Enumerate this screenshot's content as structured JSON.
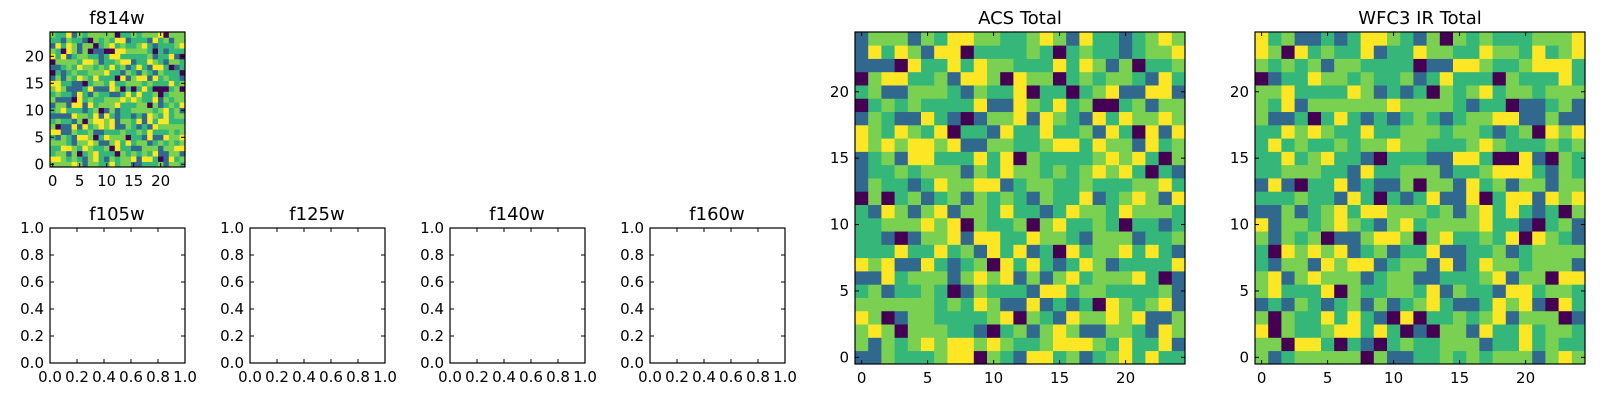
{
  "figure": {
    "colormap": "viridis",
    "palette": [
      "#440154",
      "#31688e",
      "#35b779",
      "#7ad151",
      "#fde725"
    ]
  },
  "chart_data": [
    {
      "id": "f814w",
      "type": "heatmap",
      "title": "f814w",
      "grid_size": [
        25,
        25
      ],
      "xlim": [
        -0.5,
        24.5
      ],
      "ylim": [
        -0.5,
        24.5
      ],
      "xticks": [
        "0",
        "5",
        "10",
        "15",
        "20"
      ],
      "yticks": [
        "0",
        "5",
        "10",
        "15",
        "20"
      ],
      "values_note": "per-pixel values not legible",
      "seed": 11
    },
    {
      "id": "f105w",
      "type": "empty",
      "title": "f105w",
      "xlim": [
        0,
        1
      ],
      "ylim": [
        0,
        1
      ],
      "xticks": [
        "0.0",
        "0.2",
        "0.4",
        "0.6",
        "0.8",
        "1.0"
      ],
      "yticks": [
        "0.0",
        "0.2",
        "0.4",
        "0.6",
        "0.8",
        "1.0"
      ]
    },
    {
      "id": "f125w",
      "type": "empty",
      "title": "f125w",
      "xlim": [
        0,
        1
      ],
      "ylim": [
        0,
        1
      ],
      "xticks": [
        "0.0",
        "0.2",
        "0.4",
        "0.6",
        "0.8",
        "1.0"
      ],
      "yticks": [
        "0.0",
        "0.2",
        "0.4",
        "0.6",
        "0.8",
        "1.0"
      ]
    },
    {
      "id": "f140w",
      "type": "empty",
      "title": "f140w",
      "xlim": [
        0,
        1
      ],
      "ylim": [
        0,
        1
      ],
      "xticks": [
        "0.0",
        "0.2",
        "0.4",
        "0.6",
        "0.8",
        "1.0"
      ],
      "yticks": [
        "0.0",
        "0.2",
        "0.4",
        "0.6",
        "0.8",
        "1.0"
      ]
    },
    {
      "id": "f160w",
      "type": "empty",
      "title": "f160w",
      "xlim": [
        0,
        1
      ],
      "ylim": [
        0,
        1
      ],
      "xticks": [
        "0.0",
        "0.2",
        "0.4",
        "0.6",
        "0.8",
        "1.0"
      ],
      "yticks": [
        "0.0",
        "0.2",
        "0.4",
        "0.6",
        "0.8",
        "1.0"
      ]
    },
    {
      "id": "acs-total",
      "type": "heatmap",
      "title": "ACS Total",
      "grid_size": [
        25,
        25
      ],
      "xlim": [
        -0.5,
        24.5
      ],
      "ylim": [
        -0.5,
        24.5
      ],
      "xticks": [
        "0",
        "5",
        "10",
        "15",
        "20"
      ],
      "yticks": [
        "0",
        "5",
        "10",
        "15",
        "20"
      ],
      "values_note": "per-pixel values not legible",
      "seed": 23
    },
    {
      "id": "wfc3-ir-total",
      "type": "heatmap",
      "title": "WFC3 IR Total",
      "grid_size": [
        25,
        25
      ],
      "xlim": [
        -0.5,
        24.5
      ],
      "ylim": [
        -0.5,
        24.5
      ],
      "xticks": [
        "0",
        "5",
        "10",
        "15",
        "20"
      ],
      "yticks": [
        "0",
        "5",
        "10",
        "15",
        "20"
      ],
      "values_note": "per-pixel values not legible",
      "seed": 47
    }
  ]
}
